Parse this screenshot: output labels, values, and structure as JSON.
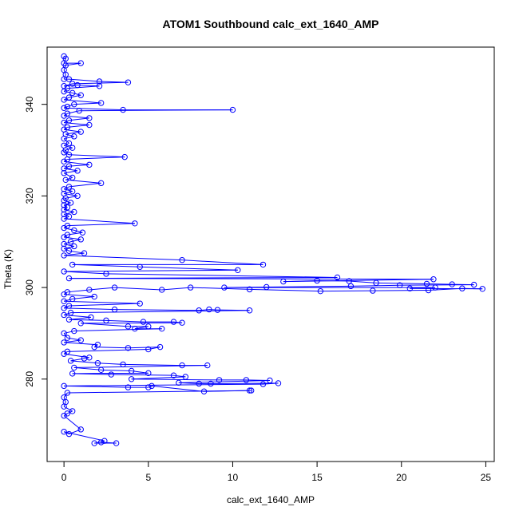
{
  "chart_data": {
    "type": "scatter",
    "title": "ATOM1 Southbound calc_ext_1640_AMP",
    "xlabel": "calc_ext_1640_AMP",
    "ylabel": "Theta (K)",
    "xlim": [
      -1.0,
      25.5
    ],
    "ylim": [
      262.0,
      352.5
    ],
    "xticks": [
      0,
      5,
      10,
      15,
      20,
      25
    ],
    "yticks": [
      280,
      300,
      320,
      340
    ],
    "grid": false,
    "legend": "none",
    "series_color": "#0000ff",
    "series": [
      {
        "style": "line+points",
        "points": [
          [
            0.0,
            350.5
          ],
          [
            0.1,
            350.0
          ],
          [
            0.0,
            349.0
          ],
          [
            1.0,
            349.0
          ],
          [
            0.1,
            348.5
          ],
          [
            0.0,
            347.5
          ],
          [
            0.1,
            346.5
          ],
          [
            0.0,
            345.5
          ],
          [
            0.3,
            345.5
          ],
          [
            2.1,
            345.0
          ],
          [
            3.8,
            344.8
          ],
          [
            0.5,
            344.5
          ],
          [
            0.0,
            344.0
          ],
          [
            0.8,
            344.2
          ],
          [
            2.1,
            344.0
          ],
          [
            0.2,
            343.5
          ],
          [
            0.0,
            342.8
          ],
          [
            0.5,
            342.5
          ],
          [
            1.0,
            342.0
          ],
          [
            0.3,
            341.5
          ],
          [
            0.0,
            341.0
          ],
          [
            2.2,
            340.3
          ],
          [
            0.6,
            340.0
          ],
          [
            0.2,
            339.5
          ],
          [
            0.0,
            339.2
          ],
          [
            3.5,
            338.8
          ],
          [
            10.0,
            338.8
          ],
          [
            0.9,
            338.6
          ],
          [
            0.2,
            338.0
          ],
          [
            0.0,
            337.5
          ],
          [
            1.5,
            337.0
          ],
          [
            0.3,
            336.5
          ],
          [
            0.0,
            336.0
          ],
          [
            1.5,
            335.5
          ],
          [
            0.2,
            335.0
          ],
          [
            0.0,
            334.5
          ],
          [
            1.0,
            334.0
          ],
          [
            0.1,
            333.5
          ],
          [
            0.6,
            333.0
          ],
          [
            0.0,
            332.5
          ],
          [
            0.3,
            331.5
          ],
          [
            0.0,
            331.0
          ],
          [
            0.5,
            330.5
          ],
          [
            0.1,
            330.0
          ],
          [
            0.0,
            329.5
          ],
          [
            0.3,
            329.0
          ],
          [
            3.6,
            328.5
          ],
          [
            0.2,
            328.0
          ],
          [
            0.0,
            327.5
          ],
          [
            1.5,
            326.8
          ],
          [
            0.3,
            326.5
          ],
          [
            0.0,
            326.0
          ],
          [
            0.8,
            325.5
          ],
          [
            0.0,
            325.0
          ],
          [
            0.5,
            324.0
          ],
          [
            0.1,
            323.5
          ],
          [
            2.2,
            322.8
          ],
          [
            0.3,
            322.0
          ],
          [
            0.0,
            321.5
          ],
          [
            0.5,
            321.0
          ],
          [
            0.0,
            320.5
          ],
          [
            0.8,
            320.0
          ],
          [
            0.1,
            319.5
          ],
          [
            0.0,
            319.0
          ],
          [
            0.4,
            318.5
          ],
          [
            0.0,
            318.0
          ],
          [
            0.2,
            317.5
          ],
          [
            0.0,
            317.0
          ],
          [
            0.6,
            316.5
          ],
          [
            0.0,
            316.0
          ],
          [
            0.3,
            315.5
          ],
          [
            0.0,
            315.0
          ],
          [
            4.2,
            314.0
          ],
          [
            0.2,
            313.5
          ],
          [
            0.0,
            313.0
          ],
          [
            0.6,
            312.5
          ],
          [
            1.1,
            312.0
          ],
          [
            0.2,
            311.5
          ],
          [
            0.0,
            311.0
          ],
          [
            1.0,
            310.5
          ],
          [
            0.4,
            310.0
          ],
          [
            0.0,
            309.5
          ],
          [
            0.6,
            309.0
          ],
          [
            0.0,
            308.5
          ],
          [
            0.3,
            308.0
          ],
          [
            1.2,
            307.5
          ],
          [
            0.0,
            307.0
          ],
          [
            7.0,
            306.0
          ],
          [
            11.8,
            305.0
          ],
          [
            0.5,
            305.0
          ],
          [
            4.5,
            304.5
          ],
          [
            10.3,
            303.8
          ],
          [
            0.0,
            303.5
          ],
          [
            2.5,
            303.0
          ],
          [
            16.2,
            302.2
          ],
          [
            0.3,
            302.0
          ],
          [
            21.9,
            301.8
          ],
          [
            13.0,
            301.3
          ],
          [
            15.0,
            301.5
          ],
          [
            16.9,
            301.4
          ],
          [
            18.5,
            301.0
          ],
          [
            21.5,
            300.8
          ],
          [
            23.0,
            300.7
          ],
          [
            24.3,
            300.6
          ],
          [
            19.9,
            300.5
          ],
          [
            17.0,
            300.3
          ],
          [
            12.0,
            300.1
          ],
          [
            9.5,
            300.0
          ],
          [
            22.0,
            300.0
          ],
          [
            20.5,
            299.8
          ],
          [
            24.8,
            299.7
          ],
          [
            23.6,
            299.8
          ],
          [
            21.6,
            299.4
          ],
          [
            18.3,
            299.3
          ],
          [
            15.2,
            299.2
          ],
          [
            11.0,
            299.6
          ],
          [
            7.5,
            300.0
          ],
          [
            5.8,
            299.5
          ],
          [
            3.0,
            300.0
          ],
          [
            1.5,
            299.5
          ],
          [
            0.2,
            299.0
          ],
          [
            0.0,
            298.5
          ],
          [
            1.8,
            298.0
          ],
          [
            0.5,
            297.5
          ],
          [
            0.0,
            297.0
          ],
          [
            4.5,
            296.5
          ],
          [
            0.3,
            296.0
          ],
          [
            0.0,
            295.5
          ],
          [
            3.0,
            295.2
          ],
          [
            8.0,
            295.0
          ],
          [
            8.6,
            295.2
          ],
          [
            9.1,
            295.1
          ],
          [
            11.0,
            295.0
          ],
          [
            0.4,
            294.5
          ],
          [
            0.0,
            294.0
          ],
          [
            1.6,
            293.5
          ],
          [
            0.3,
            293.0
          ],
          [
            2.5,
            292.8
          ],
          [
            4.7,
            292.5
          ],
          [
            6.5,
            292.5
          ],
          [
            7.0,
            292.3
          ],
          [
            1.0,
            292.2
          ],
          [
            3.8,
            291.5
          ],
          [
            5.0,
            291.5
          ],
          [
            4.2,
            291.0
          ],
          [
            5.8,
            291.0
          ],
          [
            0.6,
            290.5
          ],
          [
            0.0,
            290.0
          ],
          [
            0.2,
            289.0
          ],
          [
            1.0,
            288.5
          ],
          [
            0.0,
            288.0
          ],
          [
            2.0,
            287.5
          ],
          [
            1.8,
            287.0
          ],
          [
            3.8,
            286.8
          ],
          [
            5.7,
            287.0
          ],
          [
            5.0,
            286.5
          ],
          [
            0.2,
            286.0
          ],
          [
            0.0,
            285.5
          ],
          [
            1.5,
            284.7
          ],
          [
            1.2,
            284.5
          ],
          [
            0.4,
            284.0
          ],
          [
            2.0,
            283.5
          ],
          [
            3.5,
            283.2
          ],
          [
            7.0,
            283.0
          ],
          [
            8.5,
            283.0
          ],
          [
            0.6,
            282.5
          ],
          [
            2.2,
            282.0
          ],
          [
            4.0,
            281.8
          ],
          [
            5.0,
            281.3
          ],
          [
            0.5,
            281.2
          ],
          [
            2.8,
            281.0
          ],
          [
            6.5,
            280.8
          ],
          [
            7.2,
            280.5
          ],
          [
            4.0,
            280.0
          ],
          [
            9.2,
            279.8
          ],
          [
            10.8,
            279.8
          ],
          [
            12.2,
            279.7
          ],
          [
            6.8,
            279.2
          ],
          [
            8.0,
            279.0
          ],
          [
            8.7,
            279.0
          ],
          [
            12.7,
            279.1
          ],
          [
            11.8,
            278.9
          ],
          [
            0.0,
            278.5
          ],
          [
            3.8,
            278.2
          ],
          [
            5.0,
            278.2
          ],
          [
            5.2,
            278.5
          ],
          [
            8.3,
            277.3
          ],
          [
            11.0,
            277.5
          ],
          [
            11.1,
            277.5
          ],
          [
            0.2,
            277.0
          ],
          [
            0.0,
            276.0
          ],
          [
            0.1,
            275.0
          ],
          [
            0.0,
            274.0
          ],
          [
            0.5,
            273.0
          ],
          [
            0.2,
            272.5
          ],
          [
            0.0,
            272.0
          ],
          [
            1.0,
            269.0
          ],
          [
            0.3,
            268.0
          ],
          [
            0.0,
            268.5
          ],
          [
            2.4,
            266.5
          ],
          [
            1.8,
            266.0
          ],
          [
            3.1,
            266.0
          ],
          [
            2.2,
            266.2
          ]
        ]
      }
    ]
  }
}
